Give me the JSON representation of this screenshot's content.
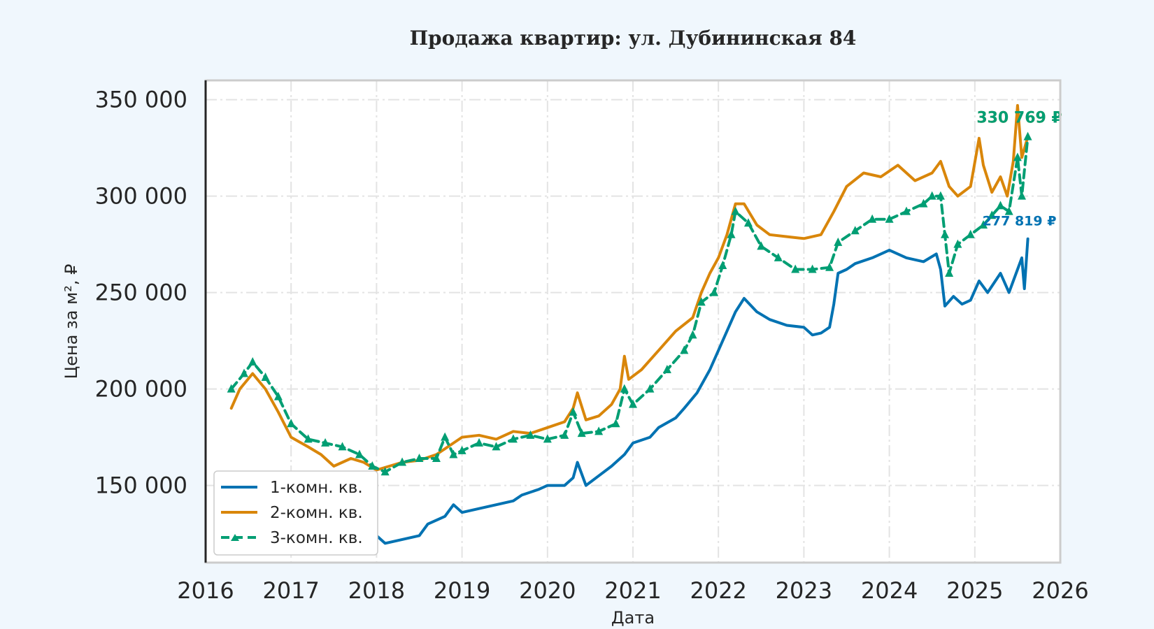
{
  "chart_data": {
    "type": "line",
    "title": "Продажа квартир: ул. Дубининская 84",
    "xlabel": "Дата",
    "ylabel": "Цена за м², ₽",
    "xlim": [
      2016,
      2026
    ],
    "ylim": [
      110000,
      360000
    ],
    "x_ticks": [
      "2016",
      "2017",
      "2018",
      "2019",
      "2020",
      "2021",
      "2022",
      "2023",
      "2024",
      "2025",
      "2026"
    ],
    "y_ticks": [
      {
        "value": 150000,
        "label": "150 000"
      },
      {
        "value": 200000,
        "label": "200 000"
      },
      {
        "value": 250000,
        "label": "250 000"
      },
      {
        "value": 300000,
        "label": "300 000"
      },
      {
        "value": 350000,
        "label": "350 000"
      }
    ],
    "grid": true,
    "legend_position": "lower-left",
    "series": [
      {
        "name": "1-комн. кв.",
        "color": "#0072b2",
        "style": "solid",
        "points": [
          [
            2016.45,
            136000
          ],
          [
            2016.65,
            138000
          ],
          [
            2016.9,
            134000
          ],
          [
            2017.2,
            130000
          ],
          [
            2017.5,
            127000
          ],
          [
            2017.8,
            126000
          ],
          [
            2018.0,
            124000
          ],
          [
            2018.1,
            120000
          ],
          [
            2018.3,
            122000
          ],
          [
            2018.5,
            124000
          ],
          [
            2018.6,
            130000
          ],
          [
            2018.8,
            134000
          ],
          [
            2018.9,
            140000
          ],
          [
            2019.0,
            136000
          ],
          [
            2019.2,
            138000
          ],
          [
            2019.4,
            140000
          ],
          [
            2019.6,
            142000
          ],
          [
            2019.7,
            145000
          ],
          [
            2019.9,
            148000
          ],
          [
            2020.0,
            150000
          ],
          [
            2020.2,
            150000
          ],
          [
            2020.3,
            154000
          ],
          [
            2020.35,
            162000
          ],
          [
            2020.45,
            150000
          ],
          [
            2020.6,
            155000
          ],
          [
            2020.75,
            160000
          ],
          [
            2020.9,
            166000
          ],
          [
            2021.0,
            172000
          ],
          [
            2021.2,
            175000
          ],
          [
            2021.3,
            180000
          ],
          [
            2021.5,
            185000
          ],
          [
            2021.6,
            190000
          ],
          [
            2021.75,
            198000
          ],
          [
            2021.9,
            210000
          ],
          [
            2022.0,
            220000
          ],
          [
            2022.1,
            230000
          ],
          [
            2022.2,
            240000
          ],
          [
            2022.3,
            247000
          ],
          [
            2022.45,
            240000
          ],
          [
            2022.6,
            236000
          ],
          [
            2022.8,
            233000
          ],
          [
            2023.0,
            232000
          ],
          [
            2023.1,
            228000
          ],
          [
            2023.2,
            229000
          ],
          [
            2023.3,
            232000
          ],
          [
            2023.35,
            244000
          ],
          [
            2023.4,
            260000
          ],
          [
            2023.5,
            262000
          ],
          [
            2023.6,
            265000
          ],
          [
            2023.8,
            268000
          ],
          [
            2024.0,
            272000
          ],
          [
            2024.2,
            268000
          ],
          [
            2024.4,
            266000
          ],
          [
            2024.55,
            270000
          ],
          [
            2024.6,
            262000
          ],
          [
            2024.65,
            243000
          ],
          [
            2024.75,
            248000
          ],
          [
            2024.85,
            244000
          ],
          [
            2024.95,
            246000
          ],
          [
            2025.05,
            256000
          ],
          [
            2025.15,
            250000
          ],
          [
            2025.3,
            260000
          ],
          [
            2025.4,
            250000
          ],
          [
            2025.5,
            262000
          ],
          [
            2025.55,
            268000
          ],
          [
            2025.58,
            252000
          ],
          [
            2025.62,
            277819
          ]
        ],
        "end_label": "277 819 ₽"
      },
      {
        "name": "2-комн. кв.",
        "color": "#d9860a",
        "style": "solid",
        "points": [
          [
            2016.3,
            190000
          ],
          [
            2016.4,
            200000
          ],
          [
            2016.55,
            208000
          ],
          [
            2016.7,
            200000
          ],
          [
            2016.85,
            188000
          ],
          [
            2017.0,
            175000
          ],
          [
            2017.2,
            170000
          ],
          [
            2017.35,
            166000
          ],
          [
            2017.5,
            160000
          ],
          [
            2017.7,
            164000
          ],
          [
            2017.85,
            162000
          ],
          [
            2018.0,
            158000
          ],
          [
            2018.15,
            160000
          ],
          [
            2018.3,
            162000
          ],
          [
            2018.5,
            163000
          ],
          [
            2018.7,
            166000
          ],
          [
            2018.9,
            172000
          ],
          [
            2019.0,
            175000
          ],
          [
            2019.2,
            176000
          ],
          [
            2019.4,
            174000
          ],
          [
            2019.6,
            178000
          ],
          [
            2019.8,
            177000
          ],
          [
            2020.0,
            180000
          ],
          [
            2020.2,
            183000
          ],
          [
            2020.3,
            190000
          ],
          [
            2020.35,
            198000
          ],
          [
            2020.45,
            184000
          ],
          [
            2020.6,
            186000
          ],
          [
            2020.75,
            192000
          ],
          [
            2020.85,
            200000
          ],
          [
            2020.9,
            217000
          ],
          [
            2020.95,
            205000
          ],
          [
            2021.1,
            210000
          ],
          [
            2021.3,
            220000
          ],
          [
            2021.5,
            230000
          ],
          [
            2021.7,
            237000
          ],
          [
            2021.8,
            250000
          ],
          [
            2021.9,
            260000
          ],
          [
            2022.0,
            268000
          ],
          [
            2022.1,
            280000
          ],
          [
            2022.2,
            296000
          ],
          [
            2022.3,
            296000
          ],
          [
            2022.45,
            285000
          ],
          [
            2022.6,
            280000
          ],
          [
            2022.8,
            279000
          ],
          [
            2023.0,
            278000
          ],
          [
            2023.2,
            280000
          ],
          [
            2023.35,
            292000
          ],
          [
            2023.5,
            305000
          ],
          [
            2023.7,
            312000
          ],
          [
            2023.9,
            310000
          ],
          [
            2024.1,
            316000
          ],
          [
            2024.3,
            308000
          ],
          [
            2024.5,
            312000
          ],
          [
            2024.6,
            318000
          ],
          [
            2024.7,
            305000
          ],
          [
            2024.8,
            300000
          ],
          [
            2024.95,
            305000
          ],
          [
            2025.05,
            330000
          ],
          [
            2025.1,
            316000
          ],
          [
            2025.2,
            302000
          ],
          [
            2025.3,
            310000
          ],
          [
            2025.38,
            300000
          ],
          [
            2025.45,
            318000
          ],
          [
            2025.5,
            347000
          ],
          [
            2025.55,
            320000
          ],
          [
            2025.62,
            330769
          ]
        ],
        "end_label": "330 769 ₽"
      },
      {
        "name": "3-комн. кв.",
        "color": "#009e73",
        "style": "dashed",
        "points": [
          [
            2016.3,
            200000
          ],
          [
            2016.45,
            208000
          ],
          [
            2016.55,
            214000
          ],
          [
            2016.7,
            206000
          ],
          [
            2016.85,
            196000
          ],
          [
            2017.0,
            182000
          ],
          [
            2017.2,
            174000
          ],
          [
            2017.4,
            172000
          ],
          [
            2017.6,
            170000
          ],
          [
            2017.8,
            166000
          ],
          [
            2017.95,
            160000
          ],
          [
            2018.1,
            157000
          ],
          [
            2018.3,
            162000
          ],
          [
            2018.5,
            164000
          ],
          [
            2018.7,
            164000
          ],
          [
            2018.8,
            175000
          ],
          [
            2018.9,
            166000
          ],
          [
            2019.0,
            168000
          ],
          [
            2019.2,
            172000
          ],
          [
            2019.4,
            170000
          ],
          [
            2019.6,
            174000
          ],
          [
            2019.8,
            176000
          ],
          [
            2020.0,
            174000
          ],
          [
            2020.2,
            176000
          ],
          [
            2020.3,
            188000
          ],
          [
            2020.4,
            177000
          ],
          [
            2020.6,
            178000
          ],
          [
            2020.8,
            182000
          ],
          [
            2020.9,
            200000
          ],
          [
            2021.0,
            192000
          ],
          [
            2021.2,
            200000
          ],
          [
            2021.4,
            210000
          ],
          [
            2021.6,
            220000
          ],
          [
            2021.7,
            228000
          ],
          [
            2021.8,
            245000
          ],
          [
            2021.95,
            250000
          ],
          [
            2022.05,
            264000
          ],
          [
            2022.15,
            280000
          ],
          [
            2022.2,
            292000
          ],
          [
            2022.35,
            286000
          ],
          [
            2022.5,
            274000
          ],
          [
            2022.7,
            268000
          ],
          [
            2022.9,
            262000
          ],
          [
            2023.1,
            262000
          ],
          [
            2023.3,
            263000
          ],
          [
            2023.4,
            276000
          ],
          [
            2023.6,
            282000
          ],
          [
            2023.8,
            288000
          ],
          [
            2024.0,
            288000
          ],
          [
            2024.2,
            292000
          ],
          [
            2024.4,
            296000
          ],
          [
            2024.5,
            300000
          ],
          [
            2024.6,
            300000
          ],
          [
            2024.65,
            280000
          ],
          [
            2024.7,
            260000
          ],
          [
            2024.8,
            275000
          ],
          [
            2024.95,
            280000
          ],
          [
            2025.1,
            285000
          ],
          [
            2025.2,
            290000
          ],
          [
            2025.3,
            295000
          ],
          [
            2025.4,
            292000
          ],
          [
            2025.5,
            320000
          ],
          [
            2025.55,
            300000
          ],
          [
            2025.62,
            330769
          ]
        ],
        "end_label": "330 769 ₽"
      }
    ]
  }
}
